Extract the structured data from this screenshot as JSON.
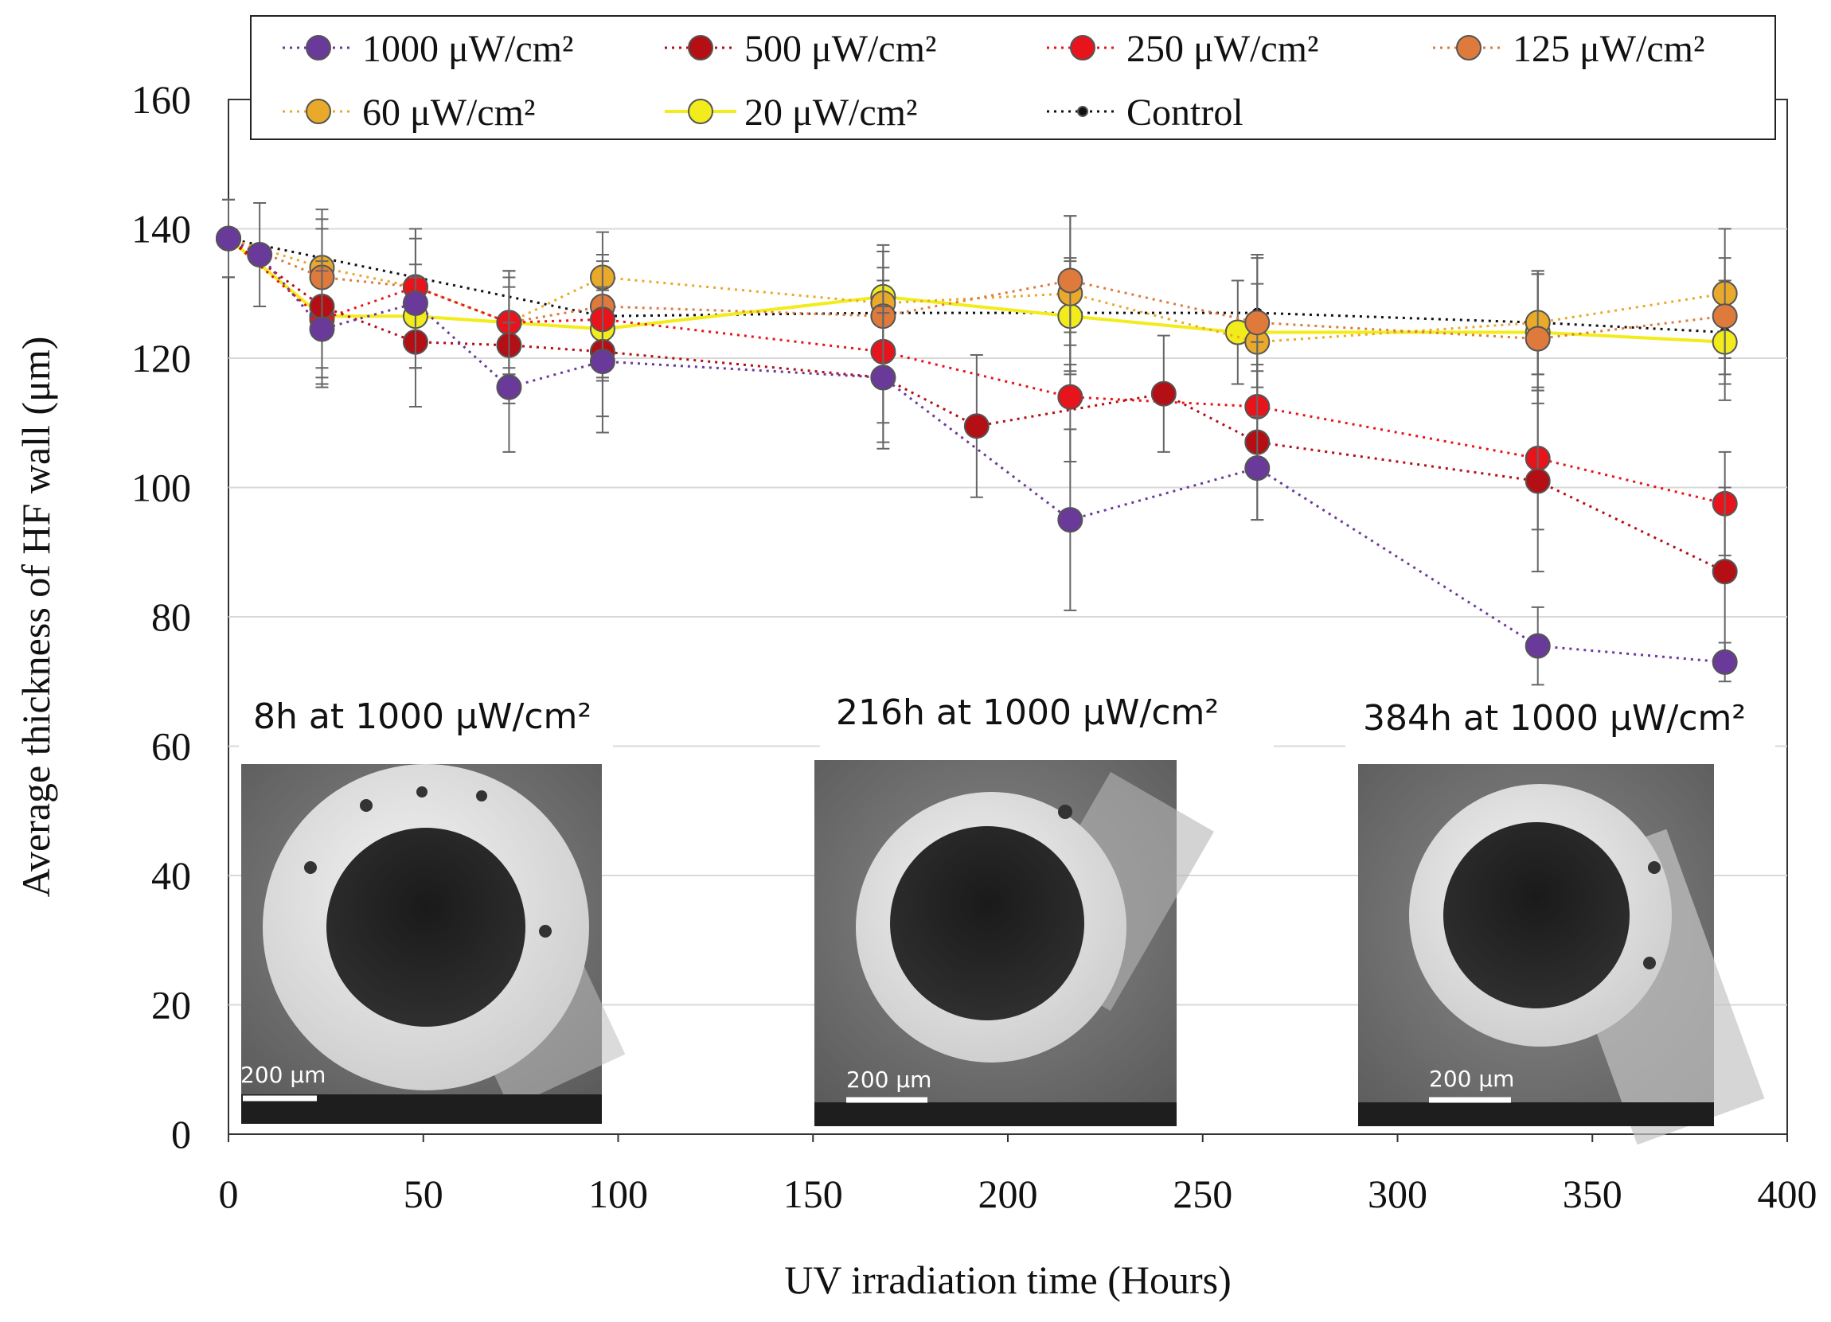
{
  "chart_data": {
    "type": "line",
    "xlabel": "UV irradiation  time  (Hours)",
    "ylabel": "Average  thickness of HF wall  (μm)",
    "xlim": [
      0,
      400
    ],
    "ylim": [
      0,
      160
    ],
    "x_ticks": [
      0,
      50,
      100,
      150,
      200,
      250,
      300,
      350,
      400
    ],
    "y_ticks": [
      0,
      20,
      40,
      60,
      80,
      100,
      120,
      140,
      160
    ],
    "x_tick_labels": [
      "0",
      "50",
      "100",
      "150",
      "200",
      "250",
      "300",
      "350",
      "400"
    ],
    "y_tick_labels": [
      "0",
      "20",
      "40",
      "60",
      "80",
      "100",
      "120",
      "140",
      "160"
    ],
    "grid": "horizontal",
    "legend_position": "top",
    "series": [
      {
        "name": "1000 μW/cm²",
        "color": "#6a3a9a",
        "dash": "dotted",
        "x": [
          0,
          8,
          24,
          48,
          72,
          96,
          168,
          216,
          264,
          336,
          384
        ],
        "values": [
          138.5,
          136,
          124.5,
          128.5,
          115.5,
          119.5,
          117,
          95,
          103,
          75.5,
          73
        ],
        "err": [
          6,
          8,
          9,
          10,
          10,
          11,
          10,
          14,
          8,
          6,
          3
        ]
      },
      {
        "name": "500 μW/cm²",
        "color": "#b30f14",
        "dash": "dotted",
        "x": [
          0,
          24,
          48,
          72,
          96,
          168,
          192,
          240,
          264,
          336,
          384
        ],
        "values": [
          138.5,
          128,
          122.5,
          122,
          121,
          117,
          109.5,
          114.5,
          107,
          101,
          87
        ],
        "err": [
          6,
          12,
          10,
          9,
          10,
          11,
          11,
          9,
          12,
          14,
          13
        ]
      },
      {
        "name": "250 μW/cm²",
        "color": "#e8141c",
        "dash": "dotted",
        "x": [
          0,
          24,
          48,
          72,
          96,
          168,
          216,
          264,
          336,
          384
        ],
        "values": [
          138.5,
          126,
          131,
          125.5,
          126,
          121,
          114,
          112.5,
          104.5,
          97.5
        ],
        "err": [
          6,
          9,
          9,
          8,
          9,
          11,
          10,
          10,
          11,
          8
        ]
      },
      {
        "name": "125 μW/cm²",
        "color": "#de7b3c",
        "dash": "dotted",
        "x": [
          0,
          24,
          48,
          72,
          96,
          168,
          216,
          264,
          336,
          384
        ],
        "values": [
          138.5,
          132.5,
          131,
          125.5,
          128,
          126.5,
          132,
          125.5,
          123,
          126.5
        ],
        "err": [
          6,
          9,
          9,
          8,
          8,
          10,
          10,
          10,
          10,
          9
        ]
      },
      {
        "name": "60 μW/cm²",
        "color": "#e9a92a",
        "dash": "dotted",
        "x": [
          0,
          24,
          48,
          72,
          96,
          168,
          216,
          264,
          336,
          384
        ],
        "values": [
          138.5,
          134,
          131,
          125.5,
          132.5,
          128.5,
          130,
          122.5,
          125.5,
          130
        ],
        "err": [
          6,
          9,
          9,
          8,
          7,
          8,
          12,
          9,
          8,
          10
        ]
      },
      {
        "name": "20 μW/cm²",
        "color": "#f2ec1c",
        "dash": "solid",
        "x": [
          0,
          24,
          48,
          72,
          96,
          168,
          216,
          259,
          336,
          384
        ],
        "values": [
          138.5,
          126.5,
          126.5,
          125.5,
          124.5,
          129.5,
          126.5,
          124,
          124,
          122.5
        ],
        "err": [
          6,
          8,
          8,
          7,
          8,
          8,
          9,
          8,
          9,
          9
        ]
      },
      {
        "name": "Control",
        "color": "#111111",
        "dash": "dotted",
        "x": [
          0,
          96,
          168,
          216,
          264,
          336,
          384
        ],
        "values": [
          138.5,
          126.5,
          127,
          127,
          127,
          125.5,
          124
        ],
        "err": [
          6,
          6,
          7,
          8,
          9,
          8,
          8
        ]
      }
    ],
    "insets": [
      {
        "caption": "8h at 1000 μW/cm²",
        "scale_label": "200 μm"
      },
      {
        "caption": "216h at 1000 μW/cm²",
        "scale_label": "200 μm"
      },
      {
        "caption": "384h at 1000 μW/cm²",
        "scale_label": "200 μm"
      }
    ]
  }
}
